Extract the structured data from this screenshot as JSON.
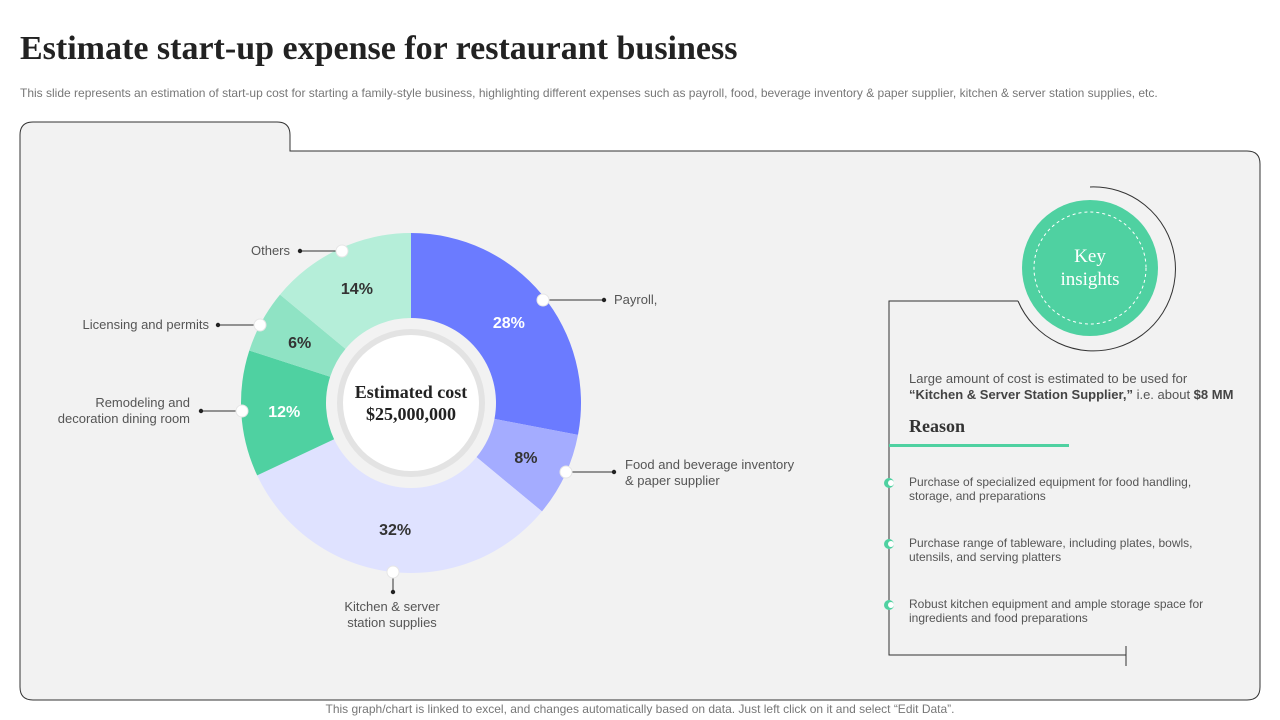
{
  "header": {
    "title": "Estimate start-up expense for restaurant business",
    "subtitle": "This slide represents an estimation of start-up cost for starting a family-style business, highlighting different expenses such as payroll, food, beverage inventory & paper supplier, kitchen & server station supplies, etc."
  },
  "chart_data": {
    "type": "pie",
    "donut": true,
    "center_label": {
      "line1": "Estimated cost",
      "line2": "$25,000,000"
    },
    "slices": [
      {
        "label": "Payroll,",
        "value": 28,
        "value_label": "28%",
        "color": "#6b7bff"
      },
      {
        "label": "Food and beverage inventory & paper supplier",
        "value": 8,
        "value_label": "8%",
        "color": "#a4acff"
      },
      {
        "label": "Kitchen & server station supplies",
        "value": 32,
        "value_label": "32%",
        "color": "#dfe2ff"
      },
      {
        "label": "Remodeling and decoration dining room",
        "value": 12,
        "value_label": "12%",
        "color": "#4fd1a1"
      },
      {
        "label": "Licensing and permits",
        "value": 6,
        "value_label": "6%",
        "color": "#8fe3c4"
      },
      {
        "label": "Others",
        "value": 14,
        "value_label": "14%",
        "color": "#b5eed9"
      }
    ]
  },
  "insights": {
    "badge_line1": "Key",
    "badge_line2": "insights",
    "summary_pre": "Large amount of cost is estimated to be used for",
    "summary_bold": "“Kitchen & Server Station Supplier,”",
    "summary_mid": " i.e. about ",
    "summary_amount": "$8 MM",
    "reason_title": "Reason",
    "reasons": [
      "Purchase of specialized equipment for food handling, storage, and preparations",
      "Purchase range of tableware, including plates, bowls, utensils, and serving platters",
      "Robust kitchen equipment and ample storage space for ingredients and food preparations"
    ]
  },
  "colors": {
    "accent_green": "#4fd1a1",
    "panel_bg": "#f2f2f2"
  },
  "footer": {
    "note": "This graph/chart is linked to excel, and changes automatically based on data. Just left click on it and select “Edit Data”."
  }
}
